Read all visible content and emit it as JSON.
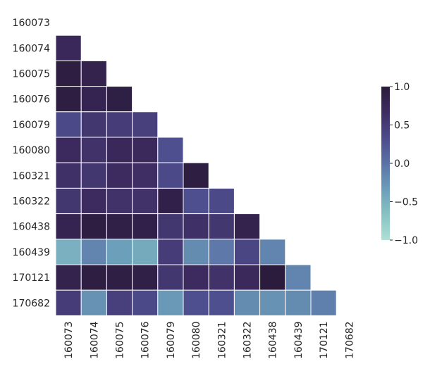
{
  "chart_data": {
    "type": "heatmap",
    "subtype": "lower-triangle correlation matrix",
    "title": "",
    "xlabel": "",
    "ylabel": "",
    "labels": [
      "160073",
      "160074",
      "160075",
      "160076",
      "160079",
      "160080",
      "160321",
      "160322",
      "160438",
      "160439",
      "170121",
      "170682"
    ],
    "matrix": [
      [
        null
      ],
      [
        0.75,
        null
      ],
      [
        0.95,
        0.85,
        null
      ],
      [
        0.95,
        0.82,
        0.93,
        null
      ],
      [
        0.35,
        0.55,
        0.5,
        0.45,
        null
      ],
      [
        0.7,
        0.6,
        0.75,
        0.72,
        0.3,
        null
      ],
      [
        0.62,
        0.55,
        0.68,
        0.65,
        0.35,
        0.95,
        null
      ],
      [
        0.55,
        0.68,
        0.6,
        0.6,
        0.88,
        0.3,
        0.35,
        null
      ],
      [
        0.82,
        0.95,
        0.9,
        0.88,
        0.55,
        0.62,
        0.55,
        0.85,
        null
      ],
      [
        -0.5,
        -0.15,
        -0.35,
        -0.45,
        0.5,
        -0.2,
        -0.05,
        0.4,
        -0.15,
        null
      ],
      [
        0.85,
        0.95,
        0.92,
        0.9,
        0.55,
        0.68,
        0.6,
        0.72,
        0.98,
        -0.15,
        null
      ],
      [
        0.5,
        -0.25,
        0.45,
        0.35,
        -0.3,
        0.3,
        0.3,
        -0.2,
        -0.25,
        -0.2,
        -0.1,
        null
      ]
    ],
    "colorbar": {
      "min": -1.0,
      "max": 1.0,
      "ticks": [
        "1.0",
        "0.5",
        "0.0",
        "−0.5",
        "−1.0"
      ],
      "tick_values": [
        1.0,
        0.5,
        0.0,
        -0.5,
        -1.0
      ],
      "colormap": [
        "#aee0d5",
        "#88c2c4",
        "#6b9db9",
        "#5a72a6",
        "#4d4b8b",
        "#3e2c62",
        "#2a1b3c"
      ]
    }
  }
}
